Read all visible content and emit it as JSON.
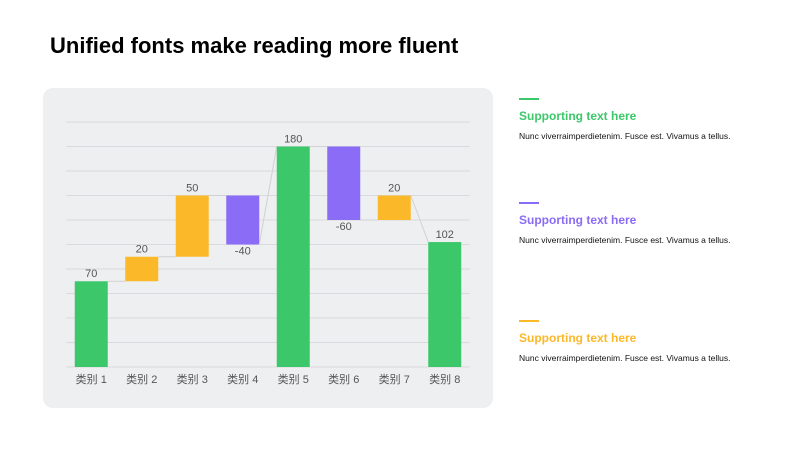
{
  "title": "Unified fonts make reading more fluent",
  "chart_data": {
    "type": "waterfall",
    "categories": [
      "类别 1",
      "类别 2",
      "类别 3",
      "类别 4",
      "类别 5",
      "类别 6",
      "类别 7",
      "类别 8"
    ],
    "values": [
      70,
      20,
      50,
      -40,
      180,
      -60,
      20,
      102
    ],
    "total_bars": [
      true,
      false,
      false,
      false,
      true,
      false,
      false,
      true
    ],
    "colors": {
      "total": "#3cc76a",
      "increase": "#fbb829",
      "decrease": "#8a6cf6"
    },
    "ylim": [
      0,
      200
    ],
    "yticks": [
      0,
      20,
      40,
      60,
      80,
      100,
      120,
      140,
      160,
      180,
      200
    ],
    "grid": true
  },
  "notes": [
    {
      "heading": "Supporting text here",
      "text": "Nunc  viverraimperdietenim.  Fusce est. Vivamus  a tellus.",
      "color": "#3cc76a"
    },
    {
      "heading": "Supporting text here",
      "text": "Nunc  viverraimperdietenim.  Fusce est. Vivamus  a tellus.",
      "color": "#8a6cf6"
    },
    {
      "heading": "Supporting text here",
      "text": "Nunc  viverraimperdietenim.  Fusce est. Vivamus  a tellus.",
      "color": "#fbb829"
    }
  ]
}
